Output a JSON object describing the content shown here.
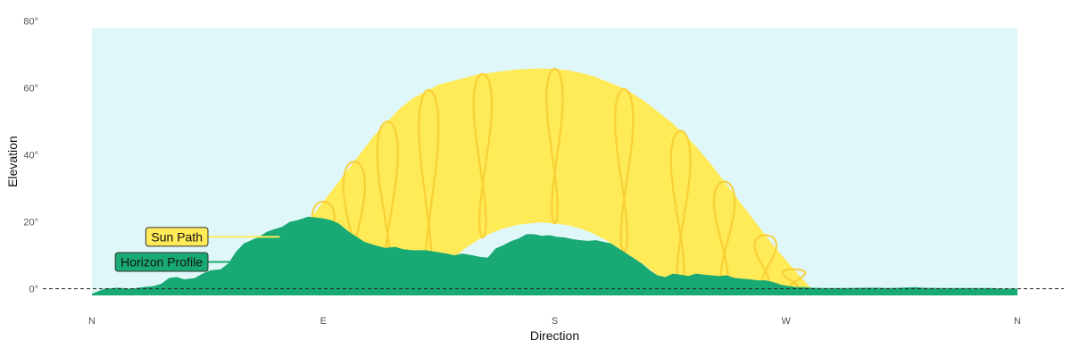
{
  "chart_data": {
    "type": "area",
    "xlabel": "Direction",
    "ylabel": "Elevation",
    "x_ticks": [
      {
        "azimuth": 0,
        "label": "N"
      },
      {
        "azimuth": 90,
        "label": "E"
      },
      {
        "azimuth": 180,
        "label": "S"
      },
      {
        "azimuth": 270,
        "label": "W"
      },
      {
        "azimuth": 360,
        "label": "N"
      }
    ],
    "y_ticks": [
      {
        "value": 0,
        "label": "0°"
      },
      {
        "value": 20,
        "label": "20°"
      },
      {
        "value": 40,
        "label": "40°"
      },
      {
        "value": 60,
        "label": "60°"
      },
      {
        "value": 80,
        "label": "80°"
      }
    ],
    "xlim": [
      0,
      360
    ],
    "ylim": [
      -2,
      78
    ],
    "grid": false,
    "reference_line": {
      "value": 0,
      "style": "dashed"
    },
    "series": [
      {
        "name": "Sun Path",
        "kind": "band",
        "color": "#ffea57",
        "upper": [
          [
            64,
            0
          ],
          [
            70,
            6
          ],
          [
            75,
            11
          ],
          [
            80,
            16
          ],
          [
            85,
            21
          ],
          [
            90,
            26
          ],
          [
            95,
            31
          ],
          [
            100,
            36
          ],
          [
            105,
            41
          ],
          [
            110,
            46
          ],
          [
            115,
            50
          ],
          [
            120,
            54
          ],
          [
            125,
            57
          ],
          [
            130,
            59
          ],
          [
            135,
            61
          ],
          [
            140,
            62
          ],
          [
            145,
            63
          ],
          [
            150,
            64
          ],
          [
            155,
            64.5
          ],
          [
            160,
            65
          ],
          [
            165,
            65.5
          ],
          [
            170,
            65.7
          ],
          [
            175,
            65.8
          ],
          [
            180,
            65.7
          ],
          [
            185,
            65.3
          ],
          [
            190,
            64.5
          ],
          [
            195,
            63.5
          ],
          [
            200,
            62
          ],
          [
            205,
            60.5
          ],
          [
            210,
            58.5
          ],
          [
            215,
            56
          ],
          [
            220,
            53
          ],
          [
            225,
            50
          ],
          [
            230,
            46.5
          ],
          [
            235,
            42.5
          ],
          [
            240,
            38
          ],
          [
            245,
            33
          ],
          [
            250,
            28
          ],
          [
            255,
            23
          ],
          [
            260,
            18
          ],
          [
            265,
            13
          ],
          [
            270,
            8.5
          ],
          [
            275,
            4
          ],
          [
            280,
            0
          ]
        ],
        "lower": [
          [
            142,
            10
          ],
          [
            145,
            12
          ],
          [
            150,
            14.5
          ],
          [
            155,
            16.5
          ],
          [
            160,
            18
          ],
          [
            165,
            19
          ],
          [
            170,
            19.5
          ],
          [
            175,
            19.8
          ],
          [
            180,
            19.5
          ],
          [
            185,
            19
          ],
          [
            190,
            18
          ],
          [
            195,
            16.5
          ],
          [
            200,
            14.5
          ],
          [
            205,
            12
          ],
          [
            210,
            9.5
          ],
          [
            215,
            7
          ],
          [
            220,
            4
          ],
          [
            225,
            1.5
          ],
          [
            230,
            0
          ]
        ]
      },
      {
        "name": "Horizon Profile",
        "kind": "area",
        "color": "#19a974",
        "points": [
          [
            0,
            -1.5
          ],
          [
            5,
            0
          ],
          [
            10,
            0.3
          ],
          [
            15,
            0
          ],
          [
            20,
            0.5
          ],
          [
            24,
            0.8
          ],
          [
            27,
            1.5
          ],
          [
            30,
            3.2
          ],
          [
            33,
            3.5
          ],
          [
            36,
            2.8
          ],
          [
            40,
            3.2
          ],
          [
            43,
            4.5
          ],
          [
            46,
            5.5
          ],
          [
            50,
            5.8
          ],
          [
            53,
            7.5
          ],
          [
            56,
            11
          ],
          [
            59,
            13.5
          ],
          [
            62,
            14.5
          ],
          [
            65,
            15.5
          ],
          [
            68,
            17
          ],
          [
            71,
            17.8
          ],
          [
            74,
            18.5
          ],
          [
            77,
            20
          ],
          [
            80,
            20.5
          ],
          [
            84,
            21.5
          ],
          [
            87,
            21.3
          ],
          [
            90,
            21
          ],
          [
            93,
            20.5
          ],
          [
            96,
            19.5
          ],
          [
            100,
            17
          ],
          [
            103,
            15.5
          ],
          [
            106,
            14
          ],
          [
            110,
            13
          ],
          [
            114,
            12.2
          ],
          [
            118,
            12.5
          ],
          [
            121,
            11.8
          ],
          [
            125,
            11.5
          ],
          [
            130,
            11.5
          ],
          [
            134,
            11
          ],
          [
            138,
            10.5
          ],
          [
            141,
            10
          ],
          [
            144,
            10.5
          ],
          [
            148,
            10
          ],
          [
            151,
            9.5
          ],
          [
            154,
            9.3
          ],
          [
            157,
            12
          ],
          [
            160,
            13
          ],
          [
            163,
            14.2
          ],
          [
            166,
            15
          ],
          [
            169,
            16.3
          ],
          [
            172,
            16.3
          ],
          [
            175,
            15.8
          ],
          [
            178,
            16
          ],
          [
            181,
            15.5
          ],
          [
            184,
            15.3
          ],
          [
            187,
            14.8
          ],
          [
            190,
            14.5
          ],
          [
            193,
            14.3
          ],
          [
            196,
            14.5
          ],
          [
            199,
            14
          ],
          [
            202,
            13.5
          ],
          [
            205,
            12
          ],
          [
            208,
            10.5
          ],
          [
            211,
            9
          ],
          [
            214,
            7.5
          ],
          [
            217,
            5.5
          ],
          [
            220,
            4
          ],
          [
            223,
            3.5
          ],
          [
            226,
            4.5
          ],
          [
            229,
            4.2
          ],
          [
            232,
            3.8
          ],
          [
            235,
            4.5
          ],
          [
            238,
            4.2
          ],
          [
            241,
            4
          ],
          [
            244,
            3.8
          ],
          [
            247,
            4
          ],
          [
            250,
            3.2
          ],
          [
            253,
            3
          ],
          [
            256,
            2.8
          ],
          [
            259,
            2.5
          ],
          [
            262,
            2.5
          ],
          [
            265,
            2
          ],
          [
            268,
            1.2
          ],
          [
            271,
            0.8
          ],
          [
            274,
            0.5
          ],
          [
            277,
            0.5
          ],
          [
            280,
            0.3
          ],
          [
            284,
            0.2
          ],
          [
            288,
            0.2
          ],
          [
            293,
            0.2
          ],
          [
            300,
            0.3
          ],
          [
            305,
            0.3
          ],
          [
            310,
            0.2
          ],
          [
            315,
            0.3
          ],
          [
            320,
            0.5
          ],
          [
            323,
            0.3
          ],
          [
            330,
            0.2
          ],
          [
            340,
            0.2
          ],
          [
            350,
            0.2
          ],
          [
            355,
            0
          ],
          [
            360,
            0
          ]
        ]
      }
    ],
    "labels": [
      {
        "text": "Sun Path",
        "color": "#ffea57",
        "anchor": [
          73,
          15.5
        ]
      },
      {
        "text": "Horizon Profile",
        "color": "#19a974",
        "anchor": [
          64,
          8
        ]
      }
    ],
    "sky_color": "#e0f7fa",
    "analemma_color": "#f7cd33",
    "analemma_azimuths": [
      79,
      90,
      102,
      115,
      131,
      152,
      180,
      207,
      229,
      246,
      262,
      273
    ]
  }
}
